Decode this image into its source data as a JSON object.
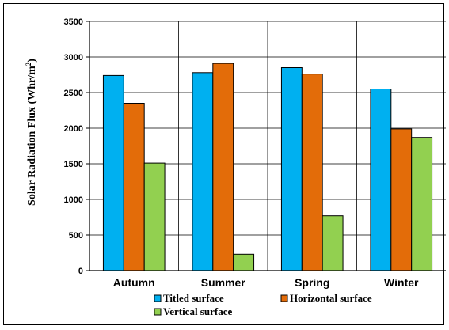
{
  "chart_data": {
    "type": "bar",
    "title": "",
    "xlabel": "",
    "ylabel": "Solar Radiation Flux (Whr/m",
    "ylabel_superscript": "2",
    "ylabel_suffix": ")",
    "categories": [
      "Autumn",
      "Summer",
      "Spring",
      "Winter"
    ],
    "ylim": [
      0,
      3500
    ],
    "yticks": [
      "0",
      "500",
      "1000",
      "1500",
      "2000",
      "2500",
      "3000",
      "3500"
    ],
    "grid": "horizontal and vertical",
    "legend_position": "bottom",
    "series": [
      {
        "name": "Titled surface",
        "color": "#00B0F0",
        "values": [
          2740,
          2780,
          2850,
          2550
        ]
      },
      {
        "name": "Horizontal surface",
        "color": "#E36C09",
        "values": [
          2350,
          2910,
          2760,
          1990
        ]
      },
      {
        "name": "Vertical surface",
        "color": "#92D050",
        "values": [
          1510,
          230,
          770,
          1870
        ]
      }
    ]
  }
}
